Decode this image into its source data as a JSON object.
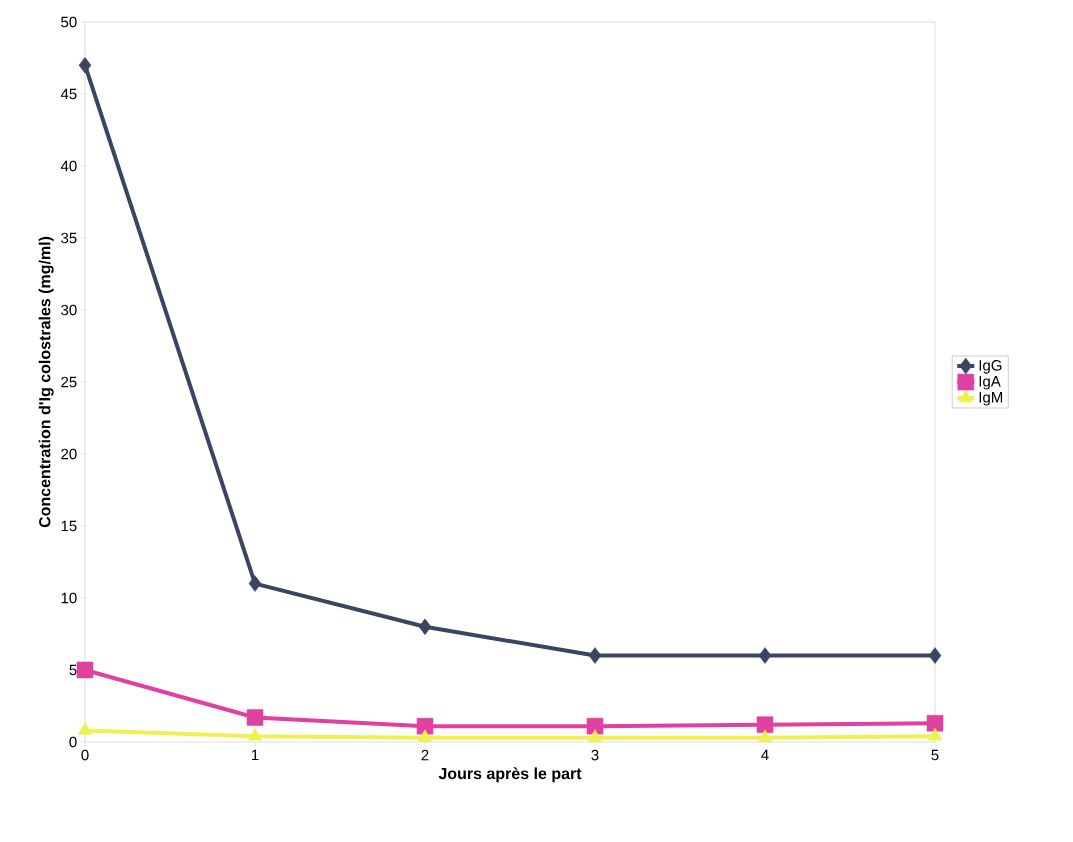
{
  "chart_data": {
    "type": "line",
    "xlabel": "Jours après le part",
    "ylabel": "Concentration d'Ig colostrales (mg/ml)",
    "x": [
      0,
      1,
      2,
      3,
      4,
      5
    ],
    "series": [
      {
        "name": "IgG",
        "color": "#3a4562",
        "marker": "diamond",
        "values": [
          47,
          11,
          8,
          6,
          6,
          6
        ]
      },
      {
        "name": "IgA",
        "color": "#e040a0",
        "marker": "square",
        "values": [
          5,
          1.7,
          1.1,
          1.1,
          1.2,
          1.3
        ]
      },
      {
        "name": "IgM",
        "color": "#f0f050",
        "marker": "triangle",
        "values": [
          0.8,
          0.4,
          0.3,
          0.3,
          0.3,
          0.4
        ]
      }
    ],
    "xlim": [
      0,
      5
    ],
    "xticks": [
      0,
      1,
      2,
      3,
      4,
      5
    ],
    "ylim": [
      0,
      50
    ],
    "yticks": [
      0,
      5,
      10,
      15,
      20,
      25,
      30,
      35,
      40,
      45,
      50
    ],
    "grid": false,
    "legend": "right",
    "line_style": "solid"
  }
}
